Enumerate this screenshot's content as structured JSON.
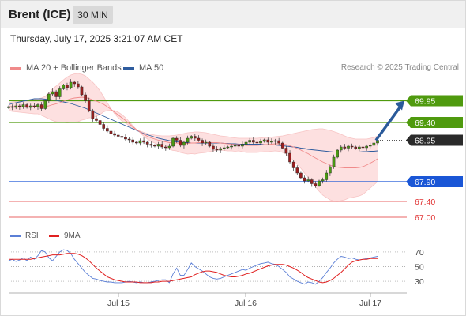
{
  "header": {
    "instrument": "Brent (ICE)",
    "timeframe": "30 MIN"
  },
  "datetime": "Thursday, July 17, 2025 3:21:07 AM CET",
  "credit": "Research © 2025 Trading Central",
  "legend": {
    "bollinger": {
      "label": "MA 20 + Bollinger Bands",
      "color": "#f08a8a"
    },
    "ma50": {
      "label": "MA 50",
      "color": "#2f5c9e"
    }
  },
  "rsi_legend": {
    "rsi": {
      "label": "RSI",
      "color": "#5b7fd6"
    },
    "ma9": {
      "label": "9MA",
      "color": "#e02020"
    }
  },
  "colors": {
    "resistance": "#4f9a0e",
    "support": "#1a56d6",
    "target": "#e03030",
    "last_price": "#2a2a2a",
    "arrow": "#2a5a9a",
    "candle_up": "#4a9a12",
    "candle_down": "#9a2020"
  },
  "chart_data": [
    {
      "type": "candlestick",
      "x_labels": [
        "Jul 15",
        "Jul 16",
        "Jul 17"
      ],
      "y_range": [
        66.8,
        70.6
      ],
      "levels": [
        {
          "value": 69.95,
          "label": "69.95",
          "kind": "resistance"
        },
        {
          "value": 69.4,
          "label": "69.40",
          "kind": "resistance"
        },
        {
          "value": 68.95,
          "label": "68.95",
          "kind": "last"
        },
        {
          "value": 67.9,
          "label": "67.90",
          "kind": "support"
        },
        {
          "value": 67.4,
          "label": "67.40",
          "kind": "target"
        },
        {
          "value": 67.0,
          "label": "67.00",
          "kind": "target"
        }
      ],
      "close": [
        69.8,
        69.78,
        69.82,
        69.8,
        69.85,
        69.78,
        69.82,
        69.8,
        69.85,
        69.75,
        69.95,
        70.12,
        70.18,
        70.05,
        70.25,
        70.35,
        70.28,
        70.42,
        70.38,
        70.3,
        70.1,
        69.95,
        69.7,
        69.5,
        69.45,
        69.35,
        69.25,
        69.18,
        69.12,
        69.08,
        69.05,
        69.02,
        68.98,
        68.96,
        68.9,
        68.88,
        68.94,
        68.9,
        68.85,
        68.82,
        68.8,
        68.85,
        68.78,
        68.76,
        68.8,
        69.0,
        68.95,
        68.82,
        68.9,
        69.0,
        69.05,
        69.0,
        68.95,
        68.88,
        68.9,
        68.8,
        68.72,
        68.7,
        68.74,
        68.76,
        68.78,
        68.8,
        68.82,
        68.8,
        68.85,
        68.9,
        68.95,
        68.9,
        68.88,
        68.92,
        68.96,
        68.9,
        68.92,
        68.94,
        68.88,
        68.75,
        68.62,
        68.4,
        68.25,
        68.12,
        68.0,
        67.92,
        67.95,
        67.85,
        67.8,
        67.92,
        67.95,
        68.12,
        68.28,
        68.52,
        68.7,
        68.78,
        68.75,
        68.8,
        68.78,
        68.74,
        68.78,
        68.76,
        68.8,
        68.82,
        68.88,
        68.95
      ],
      "ma20": [
        69.8,
        69.8,
        69.8,
        69.8,
        69.8,
        69.8,
        69.8,
        69.8,
        69.81,
        69.8,
        69.8,
        69.82,
        69.85,
        69.87,
        69.9,
        69.94,
        69.97,
        70.0,
        70.02,
        70.03,
        70.04,
        70.03,
        70.01,
        69.97,
        69.94,
        69.9,
        69.86,
        69.8,
        69.73,
        69.66,
        69.59,
        69.52,
        69.45,
        69.37,
        69.29,
        69.22,
        69.16,
        69.1,
        69.05,
        69.01,
        68.98,
        68.95,
        68.93,
        68.91,
        68.89,
        68.88,
        68.88,
        68.87,
        68.87,
        68.87,
        68.88,
        68.88,
        68.89,
        68.89,
        68.89,
        68.89,
        68.89,
        68.89,
        68.88,
        68.87,
        68.86,
        68.85,
        68.84,
        68.84,
        68.83,
        68.82,
        68.82,
        68.82,
        68.82,
        68.83,
        68.84,
        68.84,
        68.85,
        68.86,
        68.86,
        68.85,
        68.84,
        68.81,
        68.78,
        68.74,
        68.7,
        68.65,
        68.61,
        68.55,
        68.5,
        68.45,
        68.4,
        68.36,
        68.32,
        68.29,
        68.27,
        68.26,
        68.25,
        68.25,
        68.25,
        68.25,
        68.26,
        68.28,
        68.32,
        68.37,
        68.42,
        68.48
      ],
      "bb_upper": [
        69.9,
        69.92,
        69.93,
        69.94,
        69.95,
        69.96,
        69.97,
        69.98,
        70.0,
        70.02,
        70.06,
        70.15,
        70.25,
        70.32,
        70.4,
        70.48,
        70.55,
        70.6,
        70.63,
        70.64,
        70.62,
        70.58,
        70.5,
        70.42,
        70.32,
        70.2,
        70.05,
        69.9,
        69.75,
        69.62,
        69.52,
        69.44,
        69.38,
        69.32,
        69.26,
        69.22,
        69.18,
        69.15,
        69.12,
        69.1,
        69.08,
        69.07,
        69.06,
        69.06,
        69.06,
        69.07,
        69.08,
        69.1,
        69.12,
        69.14,
        69.15,
        69.16,
        69.16,
        69.15,
        69.14,
        69.12,
        69.1,
        69.08,
        69.06,
        69.05,
        69.04,
        69.02,
        69.01,
        69.0,
        69.0,
        69.0,
        69.0,
        69.0,
        69.0,
        69.01,
        69.02,
        69.02,
        69.03,
        69.04,
        69.05,
        69.06,
        69.08,
        69.1,
        69.12,
        69.14,
        69.16,
        69.18,
        69.2,
        69.22,
        69.23,
        69.24,
        69.24,
        69.22,
        69.2,
        69.17,
        69.14,
        69.1,
        69.06,
        69.02,
        69.0,
        68.98,
        68.98,
        68.98,
        68.98,
        69.0,
        69.02,
        69.06
      ],
      "bb_lower": [
        69.7,
        69.68,
        69.67,
        69.66,
        69.65,
        69.64,
        69.63,
        69.62,
        69.62,
        69.58,
        69.54,
        69.49,
        69.45,
        69.42,
        69.4,
        69.4,
        69.39,
        69.4,
        69.41,
        69.42,
        69.46,
        69.48,
        69.52,
        69.52,
        69.56,
        69.6,
        69.67,
        69.7,
        69.71,
        69.7,
        69.66,
        69.6,
        69.52,
        69.42,
        69.32,
        69.22,
        69.14,
        69.05,
        68.98,
        68.92,
        68.88,
        68.83,
        68.8,
        68.76,
        68.72,
        68.69,
        68.68,
        68.64,
        68.62,
        68.6,
        68.61,
        68.6,
        68.62,
        68.63,
        68.64,
        68.66,
        68.68,
        68.7,
        68.7,
        68.69,
        68.68,
        68.68,
        68.67,
        68.68,
        68.66,
        68.64,
        68.64,
        68.64,
        68.64,
        68.65,
        68.66,
        68.66,
        68.67,
        68.68,
        68.67,
        68.64,
        68.6,
        68.52,
        68.44,
        68.34,
        68.24,
        68.12,
        68.02,
        67.88,
        67.77,
        67.66,
        67.56,
        67.5,
        67.44,
        67.41,
        67.4,
        67.42,
        67.44,
        67.48,
        67.5,
        67.52,
        67.54,
        67.58,
        67.66,
        67.74,
        67.82,
        67.9
      ],
      "ma50": [
        69.85,
        69.88,
        69.9,
        69.92,
        69.94,
        69.96,
        69.98,
        70.0,
        70.0,
        70.0,
        69.99,
        69.98,
        69.97,
        69.96,
        69.94,
        69.92,
        69.9,
        69.88,
        69.85,
        69.82,
        69.79,
        69.76,
        69.72,
        69.68,
        69.64,
        69.6,
        69.56,
        69.52,
        69.48,
        69.44,
        69.4,
        69.36,
        69.32,
        69.28,
        69.24,
        69.2,
        69.16,
        69.12,
        69.09,
        69.06,
        69.03,
        69.0,
        68.98,
        68.96,
        68.94,
        68.92,
        68.91,
        68.9,
        68.89,
        68.89,
        68.88,
        68.88,
        68.88,
        68.88,
        68.88,
        68.88,
        68.88,
        68.88,
        68.88,
        68.87,
        68.87,
        68.86,
        68.86,
        68.85,
        68.85,
        68.85,
        68.85,
        68.85,
        68.85,
        68.85,
        68.84,
        68.84,
        68.83,
        68.83,
        68.82,
        68.81,
        68.8,
        68.79,
        68.78,
        68.77,
        68.75,
        68.74,
        68.72,
        68.71,
        68.7,
        68.69,
        68.68,
        68.67,
        68.66,
        68.65,
        68.65,
        68.65,
        68.65,
        68.65,
        68.65,
        68.65,
        68.65,
        68.66,
        68.66,
        68.67,
        68.67,
        68.68
      ],
      "forecast_arrow": {
        "from": 68.95,
        "to": 69.95
      }
    },
    {
      "type": "line",
      "name": "RSI panel",
      "y_ticks": [
        70,
        50,
        30
      ],
      "y_range": [
        15,
        85
      ],
      "x_labels": [
        "Jul 15",
        "Jul 16",
        "Jul 17"
      ],
      "rsi": [
        58,
        60,
        57,
        59,
        62,
        58,
        63,
        60,
        65,
        72,
        70,
        62,
        58,
        64,
        70,
        73,
        72,
        68,
        60,
        54,
        48,
        42,
        38,
        34,
        33,
        31,
        30,
        29,
        29,
        28,
        28,
        28,
        29,
        30,
        29,
        28,
        29,
        28,
        28,
        29,
        30,
        31,
        32,
        32,
        28,
        40,
        48,
        38,
        38,
        46,
        55,
        50,
        47,
        44,
        40,
        36,
        34,
        33,
        34,
        36,
        38,
        40,
        42,
        44,
        46,
        45,
        48,
        50,
        52,
        54,
        55,
        56,
        54,
        53,
        50,
        46,
        42,
        36,
        33,
        30,
        28,
        26,
        29,
        28,
        26,
        30,
        35,
        42,
        48,
        55,
        60,
        64,
        63,
        61,
        62,
        60,
        59,
        60,
        61,
        62,
        63,
        64
      ],
      "ma9": [
        60,
        60,
        60,
        60,
        60,
        60,
        60,
        61,
        62,
        63,
        64,
        65,
        66,
        66,
        66,
        67,
        68,
        68,
        68,
        67,
        65,
        62,
        58,
        53,
        48,
        44,
        40,
        36,
        34,
        32,
        31,
        30,
        29,
        29,
        29,
        29,
        28,
        28,
        28,
        28,
        29,
        29,
        30,
        30,
        30,
        31,
        32,
        33,
        34,
        35,
        36,
        39,
        41,
        43,
        44,
        44,
        43,
        42,
        40,
        38,
        37,
        36,
        36,
        37,
        38,
        40,
        41,
        43,
        45,
        47,
        49,
        51,
        52,
        53,
        53,
        53,
        52,
        50,
        48,
        45,
        42,
        38,
        35,
        33,
        31,
        29,
        28,
        29,
        31,
        34,
        38,
        42,
        47,
        52,
        56,
        58,
        59,
        60,
        60,
        61,
        61,
        61
      ]
    }
  ]
}
